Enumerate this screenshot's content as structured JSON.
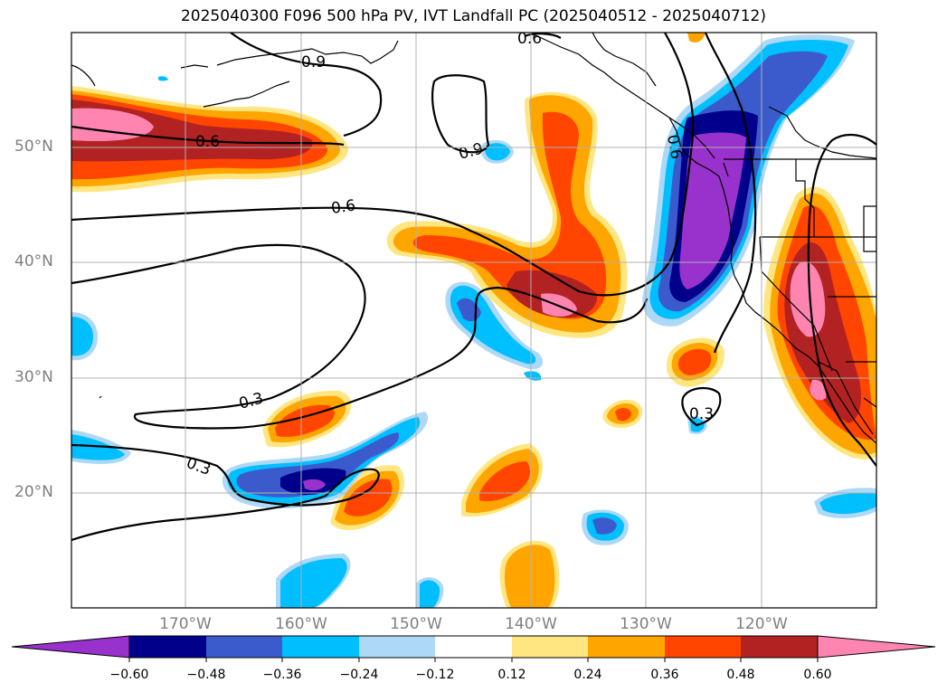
{
  "title": "2025040300 F096 500 hPa PV, IVT Landfall PC (2025040512 - 2025040712)",
  "lon_labels": [
    "170°W",
    "160°W",
    "150°W",
    "140°W",
    "130°W",
    "120°W"
  ],
  "lat_labels": [
    "50°N",
    "40°N",
    "30°N",
    "20°N"
  ],
  "contour_labels": [
    "0.9",
    "0.6",
    "0.6",
    "0.9",
    "0.6",
    "0.3",
    "0.3",
    "0.3",
    "0.6"
  ],
  "colorbar": {
    "ticks": [
      "−0.60",
      "−0.48",
      "−0.36",
      "−0.24",
      "−0.12",
      "0.12",
      "0.24",
      "0.36",
      "0.48",
      "0.60"
    ],
    "colors": [
      "#9932cc",
      "#00008b",
      "#3b5bcc",
      "#00bfff",
      "#add8f6",
      "#ffffff",
      "#ffe680",
      "#ffa500",
      "#ff4500",
      "#b22222",
      "#ff85b0"
    ]
  },
  "colors": {
    "pink": "#ff85b0",
    "darkred": "#b22222",
    "orangered": "#ff4500",
    "orange": "#ffa500",
    "yellow": "#ffe680",
    "purple": "#9932cc",
    "navy": "#00008b",
    "royal": "#3b5bcc",
    "sky": "#00bfff",
    "pale": "#add8f6"
  }
}
